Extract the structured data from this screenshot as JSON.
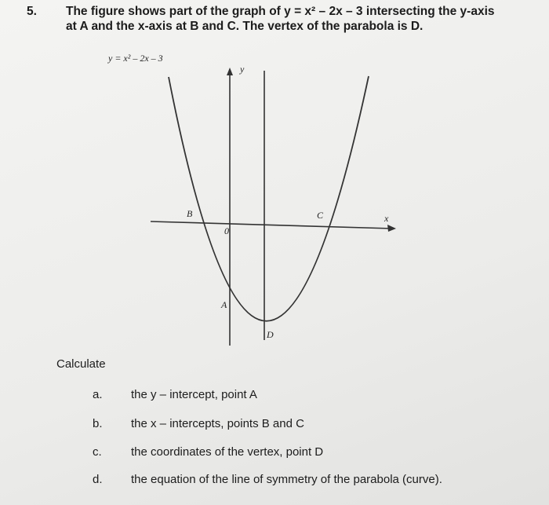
{
  "question": {
    "number": "5.",
    "lines": [
      "The figure shows part of the graph of y = x² – 2x – 3 intersecting the y-axis",
      "at A and the x-axis at B and C.  The vertex of the parabola is D."
    ]
  },
  "figure": {
    "equation": "y = x² – 2x – 3",
    "y_axis": "y",
    "x_axis": "x",
    "B": "B",
    "C": "C",
    "origin": "0",
    "A": "A",
    "D": "D"
  },
  "calculate": "Calculate",
  "items": [
    {
      "letter": "a.",
      "text": "the y – intercept, point A"
    },
    {
      "letter": "b.",
      "text": "the x – intercepts, points B and C"
    },
    {
      "letter": "c.",
      "text": "the coordinates of the vertex, point D"
    },
    {
      "letter": "d.",
      "text": "the equation of the line of symmetry of the parabola (curve)."
    }
  ]
}
